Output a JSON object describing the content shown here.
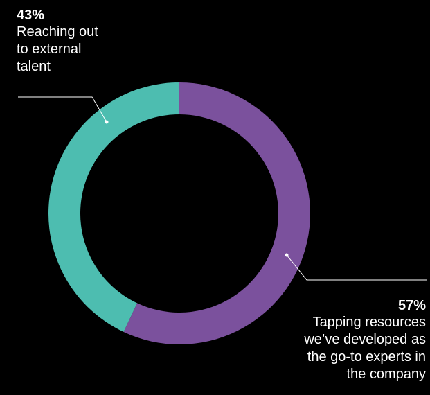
{
  "chart_data": {
    "type": "pie",
    "variant": "donut",
    "title": "",
    "slices": [
      {
        "value": 43,
        "percent_label": "43%",
        "label": "Reaching out\nto external\ntalent",
        "color": "#4dbdb0"
      },
      {
        "value": 57,
        "percent_label": "57%",
        "label": "Tapping resources\nwe’ve developed as\nthe go-to experts in\nthe company",
        "color": "#7b519d"
      }
    ]
  },
  "colors": {
    "background": "#000000",
    "text": "#ffffff",
    "leader_line": "#ffffff"
  }
}
